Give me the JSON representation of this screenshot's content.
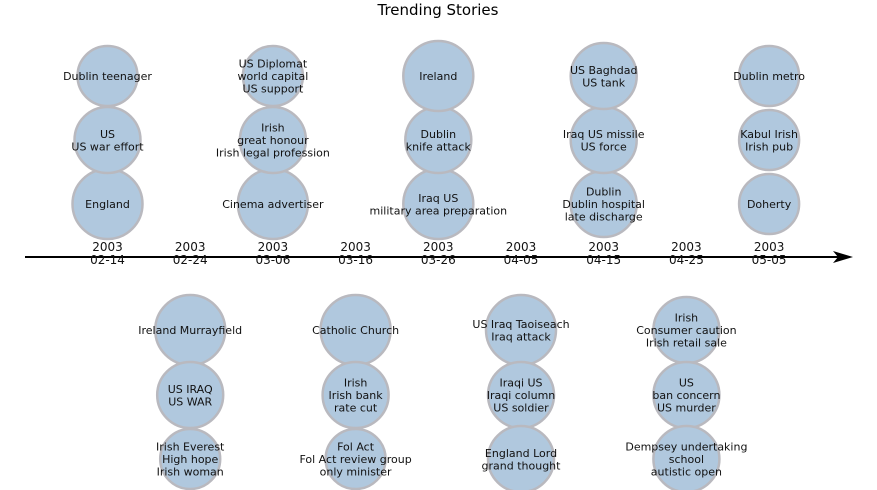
{
  "title": "Trending Stories",
  "ticks": [
    {
      "year": "2003",
      "md": "02-14"
    },
    {
      "year": "2003",
      "md": "02-24"
    },
    {
      "year": "2003",
      "md": "03-06"
    },
    {
      "year": "2003",
      "md": "03-16"
    },
    {
      "year": "2003",
      "md": "03-26"
    },
    {
      "year": "2003",
      "md": "04-05"
    },
    {
      "year": "2003",
      "md": "04-15"
    },
    {
      "year": "2003",
      "md": "04-25"
    },
    {
      "year": "2003",
      "md": "05-05"
    }
  ],
  "stories": [
    {
      "date": "02-14",
      "side": "above",
      "bubbles": [
        {
          "lines": [
            "England"
          ],
          "weight": 3
        },
        {
          "lines": [
            "US",
            "US war effort"
          ],
          "weight": 2
        },
        {
          "lines": [
            "Dublin teenager"
          ],
          "weight": 1
        }
      ]
    },
    {
      "date": "02-24",
      "side": "below",
      "bubbles": [
        {
          "lines": [
            "Ireland Murrayfield"
          ],
          "weight": 3
        },
        {
          "lines": [
            "US IRAQ",
            "US WAR"
          ],
          "weight": 2
        },
        {
          "lines": [
            "Irish Everest",
            "High hope",
            "Irish woman"
          ],
          "weight": 1
        }
      ]
    },
    {
      "date": "03-06",
      "side": "above",
      "bubbles": [
        {
          "lines": [
            "Cinema advertiser"
          ],
          "weight": 3
        },
        {
          "lines": [
            "Irish",
            "great honour",
            "Irish legal profession"
          ],
          "weight": 2
        },
        {
          "lines": [
            "US Diplomat",
            "world capital",
            "US support"
          ],
          "weight": 1
        }
      ]
    },
    {
      "date": "03-16",
      "side": "below",
      "bubbles": [
        {
          "lines": [
            "Catholic Church"
          ],
          "weight": 3
        },
        {
          "lines": [
            "Irish",
            "Irish bank",
            "rate cut"
          ],
          "weight": 2
        },
        {
          "lines": [
            "Fol Act",
            "Fol Act review group",
            "only minister"
          ],
          "weight": 1
        }
      ]
    },
    {
      "date": "03-26",
      "side": "above",
      "bubbles": [
        {
          "lines": [
            "Iraq US",
            "military area preparation"
          ],
          "weight": 3
        },
        {
          "lines": [
            "Dublin",
            "knife attack"
          ],
          "weight": 2
        },
        {
          "lines": [
            "Ireland"
          ],
          "weight": 3
        }
      ]
    },
    {
      "date": "04-05",
      "side": "below",
      "bubbles": [
        {
          "lines": [
            "US Iraq Taoiseach",
            "Iraq attack"
          ],
          "weight": 3
        },
        {
          "lines": [
            "Iraqi US",
            "Iraqi column",
            "US soldier"
          ],
          "weight": 2
        },
        {
          "lines": [
            "England Lord",
            "grand thought"
          ],
          "weight": 2
        }
      ]
    },
    {
      "date": "04-15",
      "side": "above",
      "bubbles": [
        {
          "lines": [
            "Dublin",
            "Dublin hospital",
            "late discharge"
          ],
          "weight": 2
        },
        {
          "lines": [
            "Iraq US missile",
            "US force"
          ],
          "weight": 2
        },
        {
          "lines": [
            "US Baghdad",
            "US tank"
          ],
          "weight": 2
        }
      ]
    },
    {
      "date": "04-25",
      "side": "below",
      "bubbles": [
        {
          "lines": [
            "Irish",
            "Consumer caution",
            "Irish retail sale"
          ],
          "weight": 2
        },
        {
          "lines": [
            "US",
            "ban concern",
            "US murder"
          ],
          "weight": 2
        },
        {
          "lines": [
            "Dempsey undertaking",
            "school",
            "autistic open"
          ],
          "weight": 2
        }
      ]
    },
    {
      "date": "05-05",
      "side": "above",
      "bubbles": [
        {
          "lines": [
            "Doherty"
          ],
          "weight": 1
        },
        {
          "lines": [
            "Kabul Irish",
            "Irish pub"
          ],
          "weight": 1
        },
        {
          "lines": [
            "Dublin metro"
          ],
          "weight": 1
        }
      ]
    }
  ]
}
